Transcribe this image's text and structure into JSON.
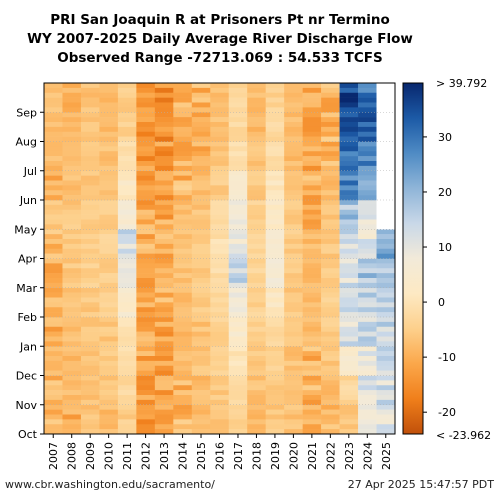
{
  "titles": {
    "line1": "PRI San Joaquin R at Prisoners Pt nr Termino",
    "line2": "WY 2007-2025 Daily Average River Discharge Flow",
    "line3": "Observed Range -72713.069 : 54.533 TCFS"
  },
  "footer": {
    "url": "www.cbr.washington.edu/sacramento/",
    "timestamp": "27 Apr 2025 15:47:57 PDT"
  },
  "colors": {
    "scale": [
      "#c0500a",
      "#f07f1b",
      "#fba74a",
      "#fdd08c",
      "#fde9c3",
      "#f2ead9",
      "#c9d8e8",
      "#8fb5d8",
      "#4f8bc4",
      "#1c5aa6",
      "#08276e"
    ],
    "missing": "#ffffff"
  },
  "chart_data": {
    "type": "heatmap",
    "x": [
      "2007",
      "2008",
      "2009",
      "2010",
      "2011",
      "2012",
      "2013",
      "2014",
      "2015",
      "2016",
      "2017",
      "2018",
      "2019",
      "2020",
      "2021",
      "2022",
      "2023",
      "2024",
      "2025"
    ],
    "y_ticks": [
      "Oct",
      "Nov",
      "Dec",
      "Jan",
      "Feb",
      "Mar",
      "Apr",
      "May",
      "Jun",
      "Jul",
      "Aug",
      "Sep"
    ],
    "colorbar": {
      "min": -23.962,
      "max": 39.792,
      "ticks": [
        -20,
        -10,
        0,
        10,
        20,
        30
      ],
      "max_label": "> 39.792",
      "min_label": "< -23.962"
    },
    "grid": true,
    "monthly_mean": [
      [
        -10,
        -9,
        -8,
        -10,
        -10,
        -10,
        -9,
        -6,
        -9,
        -8,
        -7,
        -7
      ],
      [
        -9,
        -8,
        -8,
        -8,
        -7,
        -6,
        -6,
        -6,
        -7,
        -8,
        -8,
        -9
      ],
      [
        -7,
        -7,
        -6,
        -6,
        -6,
        -5,
        -5,
        -5,
        -6,
        -6,
        -7,
        -7
      ],
      [
        -8,
        -7,
        -6,
        -6,
        -5,
        -5,
        -4,
        -5,
        -6,
        -7,
        -8,
        -8
      ],
      [
        -5,
        -3,
        -2,
        0,
        4,
        8,
        12,
        6,
        2,
        -2,
        -4,
        -5
      ],
      [
        -13,
        -12,
        -11,
        -10,
        -10,
        -10,
        -10,
        -11,
        -12,
        -13,
        -14,
        -14
      ],
      [
        -13,
        -12,
        -12,
        -11,
        -10,
        -10,
        -10,
        -11,
        -12,
        -13,
        -14,
        -14
      ],
      [
        -9,
        -9,
        -8,
        -8,
        -8,
        -7,
        -7,
        -8,
        -9,
        -10,
        -10,
        -10
      ],
      [
        -8,
        -8,
        -7,
        -7,
        -6,
        -6,
        -6,
        -7,
        -8,
        -9,
        -9,
        -9
      ],
      [
        -7,
        -6,
        -5,
        -4,
        -3,
        -2,
        -1,
        -3,
        -5,
        -6,
        -7,
        -7
      ],
      [
        -4,
        -2,
        0,
        4,
        8,
        14,
        10,
        8,
        4,
        0,
        -2,
        -3
      ],
      [
        -8,
        -7,
        -6,
        -5,
        -4,
        -4,
        -3,
        -4,
        -6,
        -7,
        -8,
        -8
      ],
      [
        -6,
        -5,
        -4,
        -2,
        2,
        6,
        4,
        3,
        1,
        -2,
        -3,
        -4
      ],
      [
        -7,
        -7,
        -7,
        -6,
        -6,
        -5,
        -5,
        -6,
        -7,
        -8,
        -8,
        -8
      ],
      [
        -10,
        -9,
        -9,
        -8,
        -8,
        -8,
        -8,
        -9,
        -10,
        -11,
        -12,
        -12
      ],
      [
        -9,
        -8,
        -6,
        -5,
        -5,
        -6,
        -6,
        -7,
        -8,
        -9,
        -9,
        -9
      ],
      [
        -6,
        -3,
        4,
        12,
        14,
        12,
        14,
        18,
        28,
        30,
        34,
        36
      ],
      [
        8,
        12,
        10,
        14,
        16,
        18,
        10,
        12,
        24,
        28,
        32,
        30
      ],
      [
        10,
        12,
        12,
        14,
        16,
        18,
        22,
        null,
        null,
        null,
        null,
        null
      ]
    ]
  }
}
